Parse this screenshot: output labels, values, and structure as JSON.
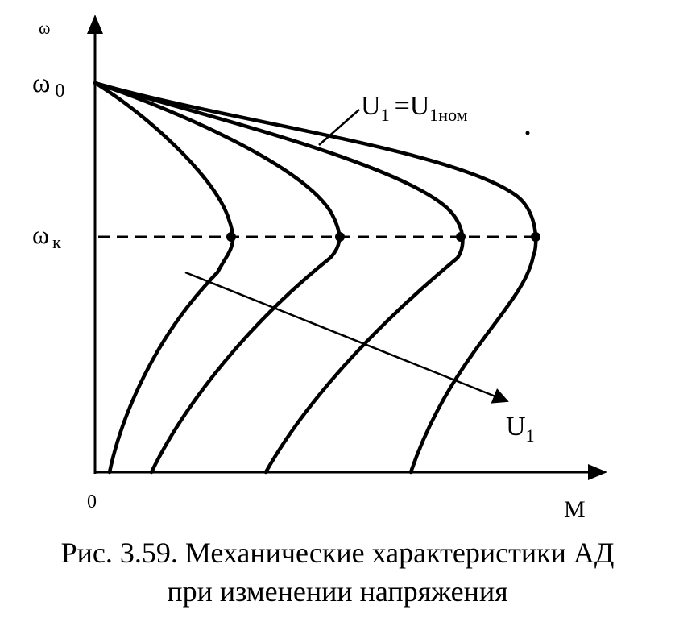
{
  "labels": {
    "omega_axis": "ω",
    "omega_0": "ω",
    "omega_0_sub": "0",
    "omega_k": "ω",
    "omega_k_sub": "к",
    "origin": "0",
    "m_axis": "M",
    "u_nom_main": "U",
    "u_nom_sub1": "1",
    "u_nom_eq": "=U",
    "u_nom_sub2": "1ном",
    "u1_main": "U",
    "u1_sub": "1"
  },
  "caption": {
    "line1": "Рис. 3.59. Механические характеристики АД",
    "line2": "при изменении напряжения"
  },
  "colors": {
    "ink": "#000000",
    "background": "#ffffff"
  }
}
